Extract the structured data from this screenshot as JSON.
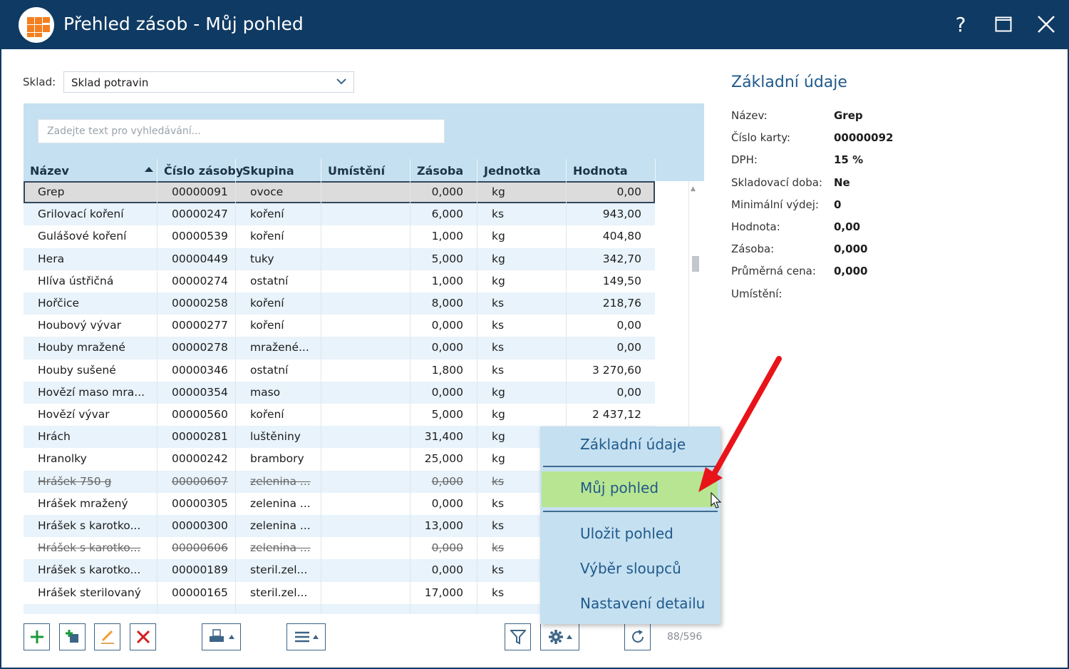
{
  "window": {
    "title": "Přehled zásob - Můj pohled",
    "help_label": "?"
  },
  "toolbar": {
    "sklad_label": "Sklad:",
    "sklad_value": "Sklad potravin"
  },
  "search": {
    "placeholder": "Zadejte text pro vyhledávání..."
  },
  "table": {
    "columns": [
      "Název",
      "Číslo zásoby",
      "Skupina",
      "Umístění",
      "Zásoba",
      "Jednotka",
      "Hodnota"
    ],
    "rows": [
      {
        "nazev": "Grep",
        "cislo": "00000091",
        "skupina": "ovoce",
        "umisteni": "",
        "zasoba": "0,000",
        "jednotka": "kg",
        "hodnota": "0,00"
      },
      {
        "nazev": "Grilovací koření",
        "cislo": "00000247",
        "skupina": "koření",
        "umisteni": "",
        "zasoba": "6,000",
        "jednotka": "ks",
        "hodnota": "943,00"
      },
      {
        "nazev": "Gulášové koření",
        "cislo": "00000539",
        "skupina": "koření",
        "umisteni": "",
        "zasoba": "1,000",
        "jednotka": "kg",
        "hodnota": "404,80"
      },
      {
        "nazev": "Hera",
        "cislo": "00000449",
        "skupina": "tuky",
        "umisteni": "",
        "zasoba": "5,000",
        "jednotka": "kg",
        "hodnota": "342,70"
      },
      {
        "nazev": "Hlíva ústřičná",
        "cislo": "00000274",
        "skupina": "ostatní",
        "umisteni": "",
        "zasoba": "1,000",
        "jednotka": "kg",
        "hodnota": "149,50"
      },
      {
        "nazev": "Hořčice",
        "cislo": "00000258",
        "skupina": "koření",
        "umisteni": "",
        "zasoba": "8,000",
        "jednotka": "ks",
        "hodnota": "218,76"
      },
      {
        "nazev": "Houbový vývar",
        "cislo": "00000277",
        "skupina": "koření",
        "umisteni": "",
        "zasoba": "0,000",
        "jednotka": "ks",
        "hodnota": "0,00"
      },
      {
        "nazev": "Houby mražené",
        "cislo": "00000278",
        "skupina": "mražené...",
        "umisteni": "",
        "zasoba": "0,000",
        "jednotka": "ks",
        "hodnota": "0,00"
      },
      {
        "nazev": "Houby sušené",
        "cislo": "00000346",
        "skupina": "ostatní",
        "umisteni": "",
        "zasoba": "1,800",
        "jednotka": "ks",
        "hodnota": "3 270,60"
      },
      {
        "nazev": "Hovězí maso mra...",
        "cislo": "00000354",
        "skupina": "maso",
        "umisteni": "",
        "zasoba": "0,000",
        "jednotka": "kg",
        "hodnota": "0,00"
      },
      {
        "nazev": "Hovězí vývar",
        "cislo": "00000560",
        "skupina": "koření",
        "umisteni": "",
        "zasoba": "5,000",
        "jednotka": "kg",
        "hodnota": "2 437,12"
      },
      {
        "nazev": "Hrách",
        "cislo": "00000281",
        "skupina": "luštěniny",
        "umisteni": "",
        "zasoba": "31,400",
        "jednotka": "kg",
        "hodnota": ""
      },
      {
        "nazev": "Hranolky",
        "cislo": "00000242",
        "skupina": "brambory",
        "umisteni": "",
        "zasoba": "25,000",
        "jednotka": "kg",
        "hodnota": ""
      },
      {
        "nazev": "Hrášek 750 g",
        "cislo": "00000607",
        "skupina": "zelenina ...",
        "umisteni": "",
        "zasoba": "0,000",
        "jednotka": "ks",
        "hodnota": "",
        "deleted": true
      },
      {
        "nazev": "Hrášek mražený",
        "cislo": "00000305",
        "skupina": "zelenina ...",
        "umisteni": "",
        "zasoba": "0,000",
        "jednotka": "ks",
        "hodnota": ""
      },
      {
        "nazev": "Hrášek s karotko...",
        "cislo": "00000300",
        "skupina": "zelenina ...",
        "umisteni": "",
        "zasoba": "13,000",
        "jednotka": "ks",
        "hodnota": ""
      },
      {
        "nazev": "Hrášek s karotko...",
        "cislo": "00000606",
        "skupina": "zelenina ...",
        "umisteni": "",
        "zasoba": "0,000",
        "jednotka": "ks",
        "hodnota": "",
        "deleted": true
      },
      {
        "nazev": "Hrášek s karotko...",
        "cislo": "00000189",
        "skupina": "steril.zel...",
        "umisteni": "",
        "zasoba": "0,000",
        "jednotka": "ks",
        "hodnota": ""
      },
      {
        "nazev": "Hrášek sterilovaný",
        "cislo": "00000165",
        "skupina": "steril.zel...",
        "umisteni": "",
        "zasoba": "17,000",
        "jednotka": "ks",
        "hodnota": ""
      },
      {
        "nazev": "",
        "cislo": "",
        "skupina": "",
        "umisteni": "",
        "zasoba": "",
        "jednotka": "",
        "hodnota": ""
      }
    ],
    "record_count": "88/596"
  },
  "detail": {
    "title": "Základní údaje",
    "fields": [
      {
        "label": "Název:",
        "value": "Grep"
      },
      {
        "label": "Číslo karty:",
        "value": "00000092"
      },
      {
        "label": "DPH:",
        "value": "15 %"
      },
      {
        "label": "Skladovací doba:",
        "value": "Ne"
      },
      {
        "label": "Minimální výdej:",
        "value": "0"
      },
      {
        "label": "Hodnota:",
        "value": "0,00"
      },
      {
        "label": "Zásoba:",
        "value": "0,000"
      },
      {
        "label": "Průměrná cena:",
        "value": "0,000"
      },
      {
        "label": "Umístění:",
        "value": ""
      }
    ]
  },
  "context_menu": {
    "items": [
      "Základní údaje",
      "Můj pohled",
      "Uložit pohled",
      "Výběr sloupců",
      "Nastavení detailu"
    ],
    "active": "Můj pohled"
  },
  "colors": {
    "titlebar": "#0f3a63",
    "accent": "#205a8c",
    "panel": "#c5e0f0",
    "row_alt": "#e8f3fb",
    "menu_active": "#b8e591",
    "annotation_arrow": "#e8141a",
    "add_green": "#1a9a3a",
    "delete_red": "#d42020",
    "logo_orange": "#f47f20"
  },
  "icons": {
    "app_logo": "grid-logo-icon",
    "help": "help-icon",
    "maximize": "maximize-icon",
    "close": "close-icon",
    "dropdown": "chevron-down-icon",
    "sort": "sort-asc-icon",
    "add": "plus-icon",
    "copy": "copy-add-icon",
    "edit": "pencil-icon",
    "delete": "x-icon",
    "print": "printer-icon",
    "menu": "hamburger-icon",
    "filter": "filter-icon",
    "settings": "gear-icon",
    "refresh": "refresh-icon",
    "cursor": "mouse-pointer-icon",
    "annotation": "red-arrow-icon"
  }
}
